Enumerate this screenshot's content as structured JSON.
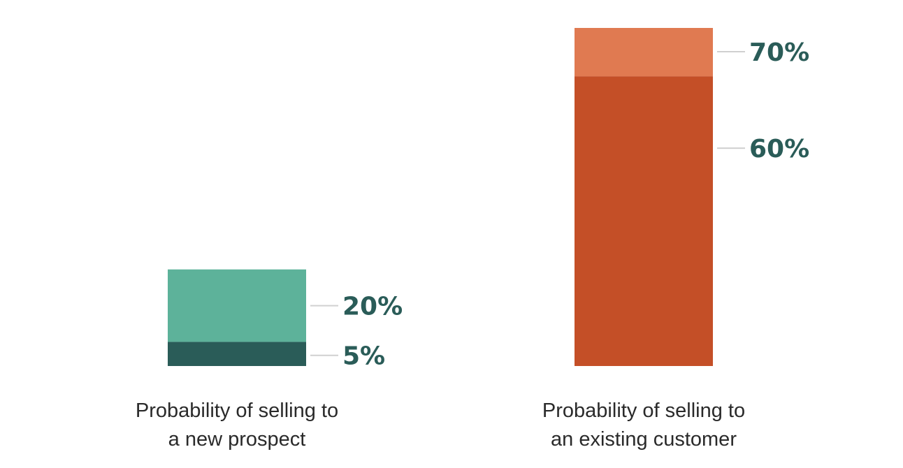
{
  "chart_data": {
    "type": "bar",
    "categories": [
      {
        "lines": [
          "Probability of selling to",
          "a new prospect"
        ]
      },
      {
        "lines": [
          "Probability of selling to",
          "an existing customer"
        ]
      }
    ],
    "bars": [
      {
        "range_low": 5,
        "range_high": 20,
        "color_base": "#2a5c58",
        "color_top": "#5db29a"
      },
      {
        "range_low": 60,
        "range_high": 70,
        "color_base": "#c44f27",
        "color_top": "#e07a51"
      }
    ],
    "values": [
      [
        {
          "value": 20,
          "label": "20%"
        },
        {
          "value": 5,
          "label": "5%"
        }
      ],
      [
        {
          "value": 70,
          "label": "70%"
        },
        {
          "value": 60,
          "label": "60%"
        }
      ]
    ],
    "label_color": "#2a5c58",
    "leader_color": "#d0d0d0",
    "ylim": [
      0,
      70
    ],
    "grid": false,
    "legend": "none"
  }
}
